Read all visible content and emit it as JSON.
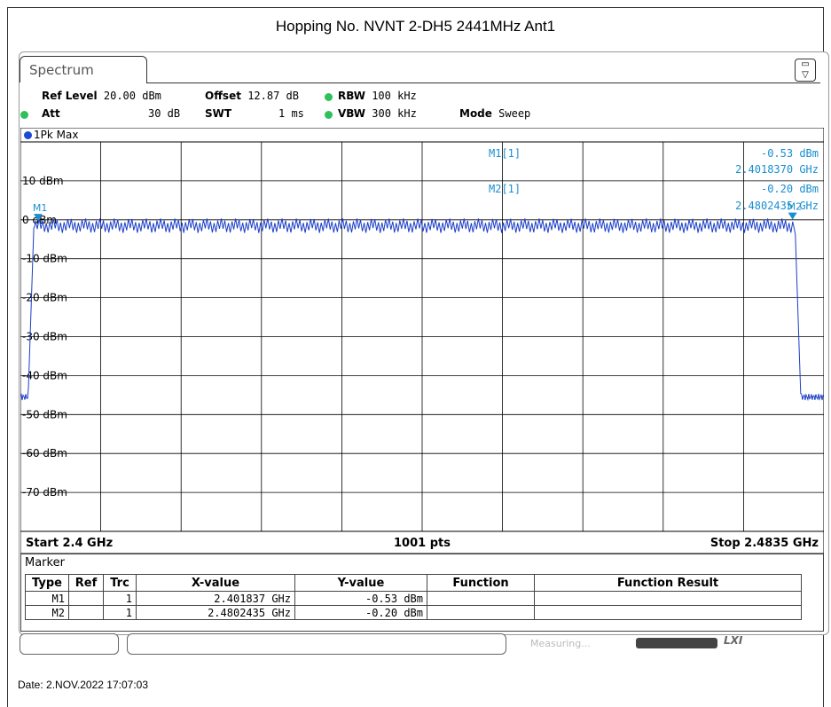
{
  "title": "Hopping No. NVNT 2-DH5 2441MHz Ant1",
  "tab": "Spectrum",
  "params": {
    "ref_level_label": "Ref Level",
    "ref_level_value": "20.00 dBm",
    "offset_label": "Offset",
    "offset_value": "12.87 dB",
    "rbw_label": "RBW",
    "rbw_value": "100 kHz",
    "att_label": "Att",
    "att_value": "30 dB",
    "swt_label": "SWT",
    "swt_value": "1 ms",
    "vbw_label": "VBW",
    "vbw_value": "300 kHz",
    "mode_label": "Mode",
    "mode_value": "Sweep"
  },
  "trace_label": "1Pk Max",
  "chart_data": {
    "type": "line",
    "series": [
      {
        "values_note": "max-hold trace; flat ~-1.5 dBm with ripple between 2.4014 and 2.4805 GHz, ~-45 dBm outside",
        "x_start": 2.4,
        "x_stop": 2.4835,
        "in_band_level": -1.5,
        "ripple": 2.5,
        "out_band_level": -45.5,
        "band_start": 2.4014,
        "band_stop": 2.4805
      }
    ],
    "xlim": [
      2.4,
      2.4835
    ],
    "ylim": [
      -80,
      20
    ],
    "y_ticks": [
      "10 dBm",
      "0 dBm",
      "-10 dBm",
      "-20 dBm",
      "-30 dBm",
      "-40 dBm",
      "-50 dBm",
      "-60 dBm",
      "-70 dBm"
    ],
    "y_tick_values": [
      10,
      0,
      -10,
      -20,
      -30,
      -40,
      -50,
      -60,
      -70
    ],
    "x_start_label": "Start 2.4 GHz",
    "x_center_label": "1001 pts",
    "x_stop_label": "Stop 2.4835 GHz",
    "markers": [
      {
        "name": "M1",
        "x": 2.401837,
        "y": -0.53
      },
      {
        "name": "M2",
        "x": 2.4802435,
        "y": -0.2
      }
    ],
    "marker_readout": {
      "m1_label": "M1[1]",
      "m1_level": "-0.53 dBm",
      "m1_freq": "2.4018370 GHz",
      "m2_label": "M2[1]",
      "m2_level": "-0.20 dBm",
      "m2_freq": "2.4802435 GHz"
    },
    "grid": true,
    "colors": {
      "trace": "#1a3ec8",
      "marker": "#1a8fd0",
      "grid": "#000000"
    }
  },
  "marker_table": {
    "header": "Marker",
    "columns": [
      "Type",
      "Ref",
      "Trc",
      "X-value",
      "Y-value",
      "Function",
      "Function Result"
    ],
    "rows": [
      {
        "type": "M1",
        "ref": "",
        "trc": "1",
        "x": "2.401837 GHz",
        "y": "-0.53 dBm",
        "func": "",
        "result": ""
      },
      {
        "type": "M2",
        "ref": "",
        "trc": "1",
        "x": "2.4802435 GHz",
        "y": "-0.20 dBm",
        "func": "",
        "result": ""
      }
    ]
  },
  "status": {
    "measuring": "Measuring...",
    "lxi": "LXI"
  },
  "date": "Date: 2.NOV.2022  17:07:03"
}
